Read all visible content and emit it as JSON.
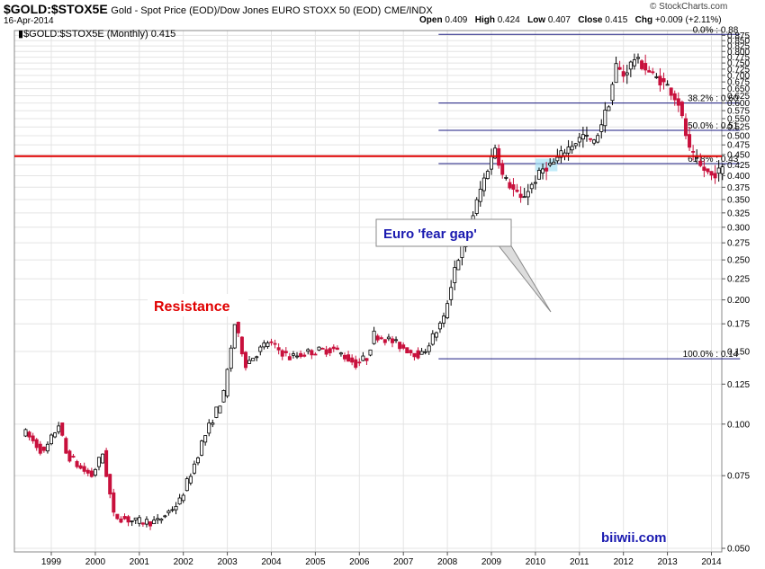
{
  "header": {
    "symbol": "$GOLD:$STOX5E",
    "description": "Gold - Spot Price (EOD)/Dow Jones EURO STOXX 50 (EOD)",
    "exchange": "CME/INDX",
    "date": "16-Apr-2014",
    "open_label": "Open",
    "open": "0.409",
    "high_label": "High",
    "high": "0.424",
    "low_label": "Low",
    "low": "0.407",
    "close_label": "Close",
    "close": "0.415",
    "chg_label": "Chg",
    "chg": "+0.009 (+2.11%)",
    "logo": "© StockCharts.com"
  },
  "legend": "$GOLD:$STOX5E (Monthly) 0.415",
  "annotations": {
    "resistance": "Resistance",
    "fear_gap": "Euro 'fear gap'",
    "watermark": "biiwii.com"
  },
  "colors": {
    "up": "#ffffff",
    "down": "#c8103c",
    "grid": "#e4e4e4",
    "fib": "#1a1a80",
    "resistance": "#e00000",
    "callout": "#1a1ab0",
    "gap": "#a6e3f5"
  },
  "chart_data": {
    "type": "candlestick",
    "title": "$GOLD:$STOX5E (Monthly)",
    "y_scale": "log",
    "ylim": [
      0.05,
      0.89
    ],
    "y_ticks": [
      "0.050",
      "0.075",
      "0.100",
      "0.125",
      "0.150",
      "0.175",
      "0.200",
      "0.225",
      "0.250",
      "0.275",
      "0.300",
      "0.325",
      "0.350",
      "0.375",
      "0.400",
      "0.425",
      "0.450",
      "0.475",
      "0.500",
      "0.525",
      "0.550",
      "0.575",
      "0.600",
      "0.625",
      "0.650",
      "0.675",
      "0.700",
      "0.725",
      "0.750",
      "0.775",
      "0.800",
      "0.825",
      "0.850",
      "0.875"
    ],
    "x_ticks": [
      "1999",
      "2000",
      "2001",
      "2002",
      "2003",
      "2004",
      "2005",
      "2006",
      "2007",
      "2008",
      "2009",
      "2010",
      "2011",
      "2012",
      "2013",
      "2014"
    ],
    "resistance_level": 0.446,
    "fibonacci": [
      {
        "label": "0.0% : 0.88",
        "value": 0.88
      },
      {
        "label": "38.2% : 0.60",
        "value": 0.6
      },
      {
        "label": "50.0% : 0.51",
        "value": 0.515
      },
      {
        "label": "61.8% : 0.43",
        "value": 0.428
      },
      {
        "label": "100.0% : 0.14",
        "value": 0.144
      }
    ],
    "fear_gap_range": [
      0.41,
      0.44
    ],
    "path": [
      [
        "1998-06",
        0.095
      ],
      [
        "1998-11",
        0.085
      ],
      [
        "1999-03",
        0.1
      ],
      [
        "1999-05",
        0.085
      ],
      [
        "1999-09",
        0.078
      ],
      [
        "1999-12",
        0.075
      ],
      [
        "2000-03",
        0.085
      ],
      [
        "2000-06",
        0.06
      ],
      [
        "2000-12",
        0.058
      ],
      [
        "2001-06",
        0.058
      ],
      [
        "2001-12",
        0.065
      ],
      [
        "2002-04",
        0.08
      ],
      [
        "2002-06",
        0.09
      ],
      [
        "2002-12",
        0.118
      ],
      [
        "2003-03",
        0.175
      ],
      [
        "2003-06",
        0.14
      ],
      [
        "2003-12",
        0.158
      ],
      [
        "2004-06",
        0.145
      ],
      [
        "2004-12",
        0.15
      ],
      [
        "2005-06",
        0.152
      ],
      [
        "2005-12",
        0.14
      ],
      [
        "2006-03",
        0.145
      ],
      [
        "2006-05",
        0.165
      ],
      [
        "2006-09",
        0.16
      ],
      [
        "2007-03",
        0.15
      ],
      [
        "2007-06",
        0.147
      ],
      [
        "2007-12",
        0.18
      ],
      [
        "2008-03",
        0.24
      ],
      [
        "2008-06",
        0.28
      ],
      [
        "2008-10",
        0.37
      ],
      [
        "2009-02",
        0.47
      ],
      [
        "2009-04",
        0.4
      ],
      [
        "2009-09",
        0.35
      ],
      [
        "2009-12",
        0.38
      ],
      [
        "2010-03",
        0.415
      ],
      [
        "2010-06",
        0.43
      ],
      [
        "2010-09",
        0.46
      ],
      [
        "2011-02",
        0.5
      ],
      [
        "2011-05",
        0.48
      ],
      [
        "2011-09",
        0.6
      ],
      [
        "2011-11",
        0.74
      ],
      [
        "2012-01",
        0.7
      ],
      [
        "2012-04",
        0.77
      ],
      [
        "2012-09",
        0.7
      ],
      [
        "2013-01",
        0.66
      ],
      [
        "2013-04",
        0.6
      ],
      [
        "2013-07",
        0.46
      ],
      [
        "2013-10",
        0.42
      ],
      [
        "2014-01",
        0.4
      ],
      [
        "2014-04",
        0.415
      ]
    ]
  }
}
